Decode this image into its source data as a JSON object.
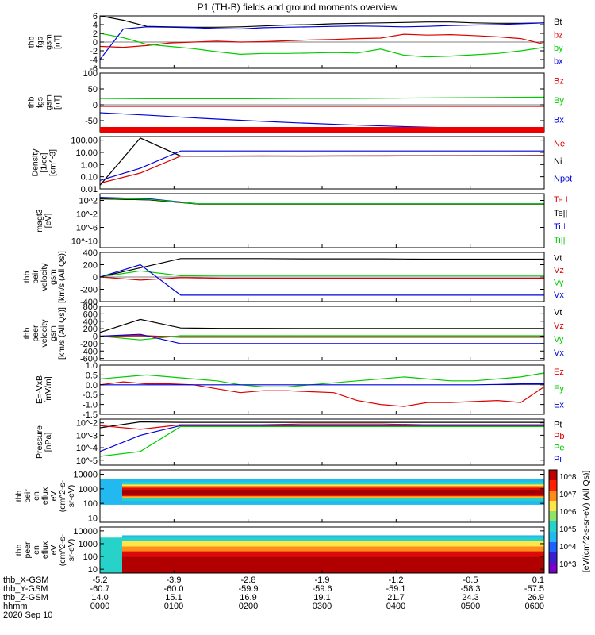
{
  "title": "P1 (TH-B) fields and ground moments overview",
  "chart_data": [
    {
      "type": "line",
      "ylabel": [
        "thb",
        "fgs",
        "gsm",
        "[nT]"
      ],
      "yticks": [
        6,
        4,
        2,
        0,
        -2,
        -4,
        -6
      ],
      "ylim": [
        -6,
        6
      ],
      "log": false,
      "legend": [
        "Bt",
        "bz",
        "by",
        "bx"
      ],
      "legend_colors": [
        "#000000",
        "#dd0000",
        "#00cc00",
        "#0000dd"
      ],
      "series": [
        {
          "name": "Bt",
          "color": "#000000",
          "values": [
            6.0,
            5.0,
            3.6,
            3.5,
            3.4,
            3.4,
            3.5,
            3.7,
            3.9,
            4.0,
            4.2,
            4.3,
            4.4,
            4.5,
            4.6,
            4.6,
            4.4,
            4.3,
            4.3,
            4.4
          ]
        },
        {
          "name": "bz",
          "color": "#dd0000",
          "values": [
            -1.0,
            -1.2,
            -0.8,
            -0.2,
            0.0,
            0.2,
            0.0,
            0.1,
            0.3,
            0.5,
            0.6,
            0.8,
            0.9,
            1.8,
            1.6,
            1.7,
            1.5,
            1.2,
            0.8,
            -0.5
          ]
        },
        {
          "name": "by",
          "color": "#00cc00",
          "values": [
            2.0,
            1.0,
            -0.5,
            -1.0,
            -1.5,
            -2.2,
            -2.8,
            -2.6,
            -2.6,
            -2.5,
            -2.4,
            -2.5,
            -1.6,
            -3.0,
            -3.4,
            -3.2,
            -2.9,
            -2.6,
            -2.0,
            -1.2
          ]
        },
        {
          "name": "bx",
          "color": "#0000dd",
          "values": [
            -4.0,
            3.0,
            3.5,
            3.4,
            3.3,
            3.1,
            3.0,
            3.3,
            3.4,
            3.5,
            3.6,
            3.7,
            3.6,
            3.5,
            3.6,
            3.8,
            3.9,
            4.0,
            4.2,
            4.4
          ]
        }
      ]
    },
    {
      "type": "line",
      "ylabel": [
        "thb",
        "fgs",
        "gsm",
        "[nT]"
      ],
      "yticks": [
        100,
        50,
        0,
        -50
      ],
      "ylim": [
        -85,
        100
      ],
      "log": false,
      "legend": [
        "Bz",
        "By",
        "Bx"
      ],
      "legend_colors": [
        "#dd0000",
        "#00cc00",
        "#0000dd"
      ],
      "series": [
        {
          "name": "Bz",
          "color": "#dd0000",
          "values": [
            -5,
            -5,
            -5,
            -5,
            -5,
            -5,
            -5,
            -5,
            -5,
            -5
          ]
        },
        {
          "name": "By",
          "color": "#00cc00",
          "values": [
            20,
            19,
            19,
            19,
            20,
            20,
            21,
            22,
            23,
            24
          ]
        },
        {
          "name": "Bx",
          "color": "#0000dd",
          "values": [
            -25,
            -33,
            -42,
            -50,
            -57,
            -63,
            -68,
            -72,
            -76,
            -80
          ]
        }
      ]
    },
    {
      "type": "line",
      "ylabel": [
        "Density",
        "[1/cc]",
        "[cm^-3]"
      ],
      "yticks": [
        100.0,
        10.0,
        1.0,
        0.1,
        0.01
      ],
      "ytick_labels": [
        "100.00",
        "10.00",
        "1.00",
        "0.10",
        "0.01"
      ],
      "ylim": [
        0.01,
        200
      ],
      "log": true,
      "legend": [
        "Ne",
        "Ni",
        "Npot"
      ],
      "legend_colors": [
        "#dd0000",
        "#000000",
        "#0000dd"
      ],
      "series": [
        {
          "name": "Ne",
          "color": "#dd0000",
          "values": [
            0.03,
            0.2,
            5.0,
            5.0,
            5.2,
            5.1,
            5.2,
            5.3,
            5.3,
            5.4,
            5.4,
            5.5
          ]
        },
        {
          "name": "Ni",
          "color": "#000000",
          "values": [
            0.02,
            150,
            5.0,
            4.9,
            5.0,
            5.0,
            5.1,
            5.1,
            5.2,
            5.2,
            5.3,
            5.3
          ]
        },
        {
          "name": "Npot",
          "color": "#0000dd",
          "values": [
            0.05,
            0.5,
            13,
            13,
            13,
            13,
            13,
            13,
            13,
            13,
            13,
            13
          ]
        }
      ]
    },
    {
      "type": "line",
      "ylabel": [
        "magt3",
        "[eV]"
      ],
      "yticks": [
        100,
        0.01,
        1e-06,
        1e-10
      ],
      "ytick_labels": [
        "10^2",
        "10^-2",
        "10^-6",
        "10^-10"
      ],
      "ylim": [
        1e-12,
        10000
      ],
      "log": true,
      "legend": [
        "Te⊥",
        "Te||",
        "Ti⊥",
        "Ti||"
      ],
      "legend_colors": [
        "#dd0000",
        "#000000",
        "#0000dd",
        "#00cc00"
      ],
      "series": [
        {
          "name": "Te⊥",
          "color": "#dd0000",
          "values": [
            300,
            150,
            8,
            8,
            8,
            8,
            8,
            8,
            8,
            8
          ]
        },
        {
          "name": "Te||",
          "color": "#000000",
          "values": [
            300,
            150,
            8,
            8,
            8,
            8,
            8,
            8,
            8,
            8
          ]
        },
        {
          "name": "Ti⊥",
          "color": "#0000dd",
          "values": [
            800,
            300,
            10,
            10,
            10,
            10,
            10,
            10,
            10,
            10
          ]
        },
        {
          "name": "Ti||",
          "color": "#00cc00",
          "values": [
            500,
            200,
            9,
            9,
            9,
            9,
            9,
            9,
            9,
            9
          ]
        }
      ]
    },
    {
      "type": "line",
      "ylabel": [
        "thb",
        "peir",
        "velocity",
        "gsm",
        "[km/s (All Qs)]"
      ],
      "yticks": [
        400,
        200,
        0,
        -200,
        -400
      ],
      "ylim": [
        -400,
        400
      ],
      "log": false,
      "legend": [
        "Vt",
        "Vz",
        "Vy",
        "Vx"
      ],
      "legend_colors": [
        "#000000",
        "#dd0000",
        "#00cc00",
        "#0000dd"
      ],
      "series": [
        {
          "name": "Vt",
          "color": "#000000",
          "values": [
            0,
            150,
            300,
            300,
            300,
            295,
            295,
            295,
            290,
            290,
            290,
            290
          ]
        },
        {
          "name": "Vz",
          "color": "#dd0000",
          "values": [
            0,
            -50,
            -10,
            -20,
            -20,
            -20,
            -20,
            -20,
            -20,
            -20,
            -20,
            -20
          ]
        },
        {
          "name": "Vy",
          "color": "#00cc00",
          "values": [
            0,
            100,
            20,
            25,
            25,
            25,
            25,
            25,
            25,
            25,
            25,
            25
          ]
        },
        {
          "name": "Vx",
          "color": "#0000dd",
          "values": [
            0,
            200,
            -295,
            -295,
            -295,
            -295,
            -295,
            -295,
            -295,
            -295,
            -295,
            -295
          ]
        }
      ]
    },
    {
      "type": "line",
      "ylabel": [
        "thb",
        "peer",
        "velocity",
        "gsm",
        "[km/s (All Qs)]"
      ],
      "yticks": [
        800,
        600,
        400,
        200,
        0,
        -200,
        -400,
        -600
      ],
      "ylim": [
        -650,
        800
      ],
      "log": false,
      "legend": [
        "Vt",
        "Vz",
        "Vy",
        "Vx"
      ],
      "legend_colors": [
        "#000000",
        "#dd0000",
        "#00cc00",
        "#0000dd"
      ],
      "series": [
        {
          "name": "Vt",
          "color": "#000000",
          "values": [
            100,
            450,
            220,
            210,
            210,
            205,
            205,
            205,
            205,
            205,
            205,
            205
          ]
        },
        {
          "name": "Vz",
          "color": "#dd0000",
          "values": [
            0,
            20,
            -30,
            -30,
            -30,
            -30,
            -30,
            -30,
            -30,
            -30,
            -30,
            -30
          ]
        },
        {
          "name": "Vy",
          "color": "#00cc00",
          "values": [
            0,
            -100,
            10,
            10,
            10,
            10,
            10,
            10,
            10,
            10,
            10,
            10
          ]
        },
        {
          "name": "Vx",
          "color": "#0000dd",
          "values": [
            0,
            50,
            -200,
            -200,
            -200,
            -200,
            -200,
            -200,
            -200,
            -200,
            -200,
            -200
          ]
        }
      ]
    },
    {
      "type": "line",
      "ylabel": [
        "E=-VxB",
        "[mV/m]"
      ],
      "yticks": [
        1.0,
        0.5,
        0.0,
        -0.5,
        -1.0,
        -1.5
      ],
      "ytick_labels": [
        "1.0",
        "0.5",
        "0.0",
        "-0.5",
        "-1.0",
        "-1.5"
      ],
      "ylim": [
        -1.5,
        1.0
      ],
      "log": false,
      "legend": [
        "Ez",
        "Ey",
        "Ex"
      ],
      "legend_colors": [
        "#dd0000",
        "#00cc00",
        "#0000dd"
      ],
      "series": [
        {
          "name": "Ez",
          "color": "#dd0000",
          "values": [
            0.0,
            0.15,
            0.05,
            0.05,
            0.0,
            -0.2,
            -0.4,
            -0.3,
            -0.3,
            -0.35,
            -0.4,
            -0.8,
            -1.0,
            -1.1,
            -0.9,
            -0.9,
            -0.85,
            -0.8,
            -0.9,
            -0.1
          ]
        },
        {
          "name": "Ey",
          "color": "#00cc00",
          "values": [
            0.3,
            0.4,
            0.5,
            0.4,
            0.3,
            0.2,
            0.0,
            -0.1,
            -0.1,
            0.0,
            0.1,
            0.2,
            0.3,
            0.4,
            0.3,
            0.2,
            0.2,
            0.3,
            0.4,
            0.6
          ]
        },
        {
          "name": "Ex",
          "color": "#0000dd",
          "values": [
            0.0,
            0.0,
            0.0,
            0.0,
            0.0,
            0.0,
            0.0,
            0.0,
            0.0,
            0.0,
            0.0,
            0.0,
            0.0,
            0.0,
            0.0,
            0.0,
            0.0,
            0.02,
            0.05,
            0.05
          ]
        }
      ]
    },
    {
      "type": "line",
      "ylabel": [
        "Pressure",
        "[nPa]"
      ],
      "yticks": [
        0.01,
        0.001,
        0.0001,
        1e-05
      ],
      "ytick_labels": [
        "10^-2",
        "10^-3",
        "10^-4",
        "10^-5"
      ],
      "ylim": [
        4e-06,
        0.02
      ],
      "log": true,
      "legend": [
        "Pt",
        "Pb",
        "Pe",
        "Pi"
      ],
      "legend_colors": [
        "#000000",
        "#dd0000",
        "#00cc00",
        "#0000dd"
      ],
      "series": [
        {
          "name": "Pt",
          "color": "#000000",
          "values": [
            0.004,
            0.012,
            0.011,
            0.011,
            0.011,
            0.011,
            0.011,
            0.011,
            0.011,
            0.011,
            0.011,
            0.011
          ]
        },
        {
          "name": "Pb",
          "color": "#dd0000",
          "values": [
            0.006,
            0.003,
            0.007,
            0.007,
            0.007,
            0.008,
            0.008,
            0.008,
            0.007,
            0.007,
            0.007,
            0.007
          ]
        },
        {
          "name": "Pe",
          "color": "#00cc00",
          "values": [
            2e-05,
            5e-05,
            0.005,
            0.005,
            0.005,
            0.005,
            0.005,
            0.005,
            0.005,
            0.005,
            0.005,
            0.005
          ]
        },
        {
          "name": "Pi",
          "color": "#0000dd",
          "values": [
            5e-05,
            0.001,
            0.006,
            0.006,
            0.006,
            0.006,
            0.006,
            0.006,
            0.006,
            0.006,
            0.006,
            0.006
          ]
        }
      ]
    },
    {
      "type": "heatmap",
      "ylabel": [
        "thb",
        "peir",
        "en",
        "eflux",
        "eV",
        "(cm^2-s-",
        "sr-eV)"
      ],
      "yticks": [
        10000,
        1000,
        100,
        10
      ],
      "ylim": [
        5,
        20000
      ],
      "log": true,
      "bands": [
        {
          "low": 5,
          "high": 80,
          "color": "#ffffff"
        },
        {
          "low": 80,
          "high": 4500,
          "color": "#22b8f0"
        },
        {
          "low": 150,
          "high": 3000,
          "color": "#27d3c8"
        },
        {
          "low": 220,
          "high": 2000,
          "color": "#ffe44a"
        },
        {
          "low": 260,
          "high": 1600,
          "color": "#ff8c1a"
        },
        {
          "low": 320,
          "high": 1200,
          "color": "#dd0a0a"
        },
        {
          "low": 420,
          "high": 850,
          "color": "#a00000"
        }
      ]
    },
    {
      "type": "heatmap",
      "ylabel": [
        "thb",
        "peer",
        "en",
        "eflux",
        "eV",
        "(cm^2-s-",
        "sr-eV)"
      ],
      "yticks": [
        10000,
        1000,
        100,
        10
      ],
      "ylim": [
        5,
        20000
      ],
      "log": true,
      "bands": [
        {
          "low": 5,
          "high": 4500,
          "color": "#22b8f0"
        },
        {
          "low": 5,
          "high": 3000,
          "color": "#27d3c8"
        },
        {
          "low": 5,
          "high": 1600,
          "color": "#ffe44a"
        },
        {
          "low": 5,
          "high": 600,
          "color": "#ff8c1a"
        },
        {
          "low": 5,
          "high": 250,
          "color": "#dd0a0a"
        },
        {
          "low": 5,
          "high": 90,
          "color": "#b00000"
        }
      ]
    }
  ],
  "colorbar": {
    "label": "[eV/(cm^2-s-sr-eV) (All Qs)]",
    "ticks": [
      "10^8",
      "10^7",
      "10^6",
      "10^5",
      "10^4",
      "10^3"
    ]
  },
  "footer": {
    "rows": [
      {
        "label": "thb_X-GSM",
        "values": [
          "-5.2",
          "-3.9",
          "-2.8",
          "-1.9",
          "-1.2",
          "-0.5",
          "0.1"
        ]
      },
      {
        "label": "thb_Y-GSM",
        "values": [
          "-60.7",
          "-60.0",
          "-59.9",
          "-59.6",
          "-59.1",
          "-58.3",
          "-57.5"
        ]
      },
      {
        "label": "thb_Z-GSM",
        "values": [
          "14.0",
          "15.1",
          "16.9",
          "19.1",
          "21.7",
          "24.3",
          "26.9"
        ]
      },
      {
        "label": "hhmm",
        "values": [
          "0000",
          "0100",
          "0200",
          "0300",
          "0400",
          "0500",
          "0600"
        ]
      }
    ],
    "date": "2020 Sep 10"
  }
}
